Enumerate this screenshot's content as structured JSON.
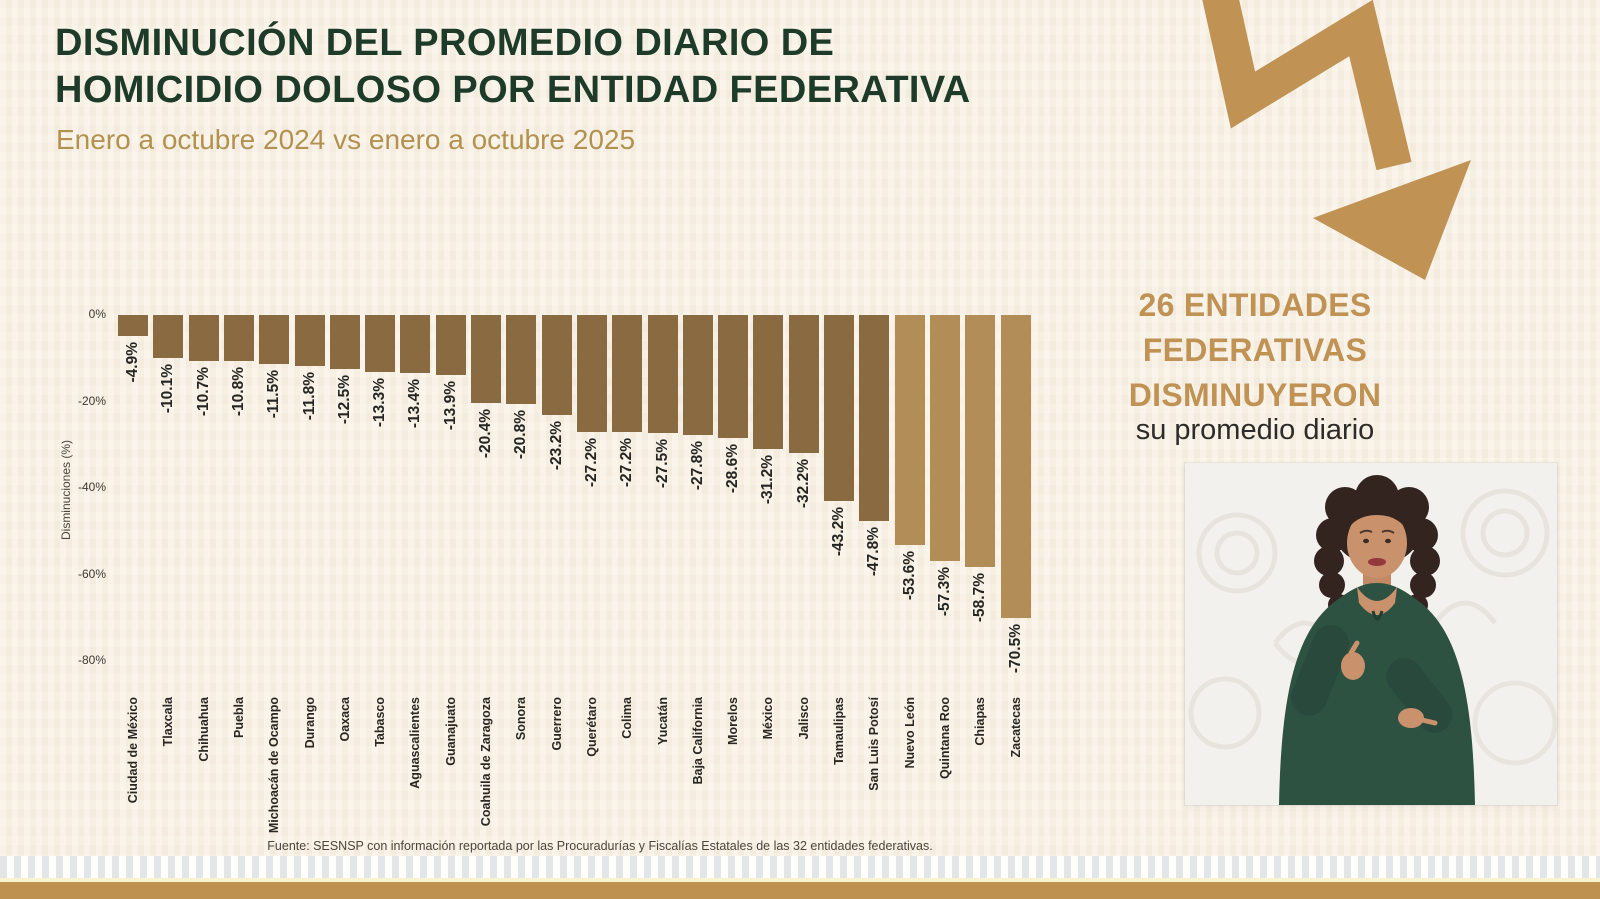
{
  "header": {
    "title_line1": "DISMINUCIÓN DEL PROMEDIO DIARIO DE",
    "title_line2": "HOMICIDIO DOLOSO POR ENTIDAD FEDERATIVA",
    "subtitle": "Enero a octubre 2024 vs enero a octubre 2025"
  },
  "chart_data": {
    "type": "bar",
    "title": "Disminución del promedio diario de homicidio doloso por entidad federativa",
    "subtitle": "Enero a octubre 2024 vs enero a octubre 2025",
    "xlabel": "",
    "ylabel": "Disminuciones (%)",
    "ylim": [
      -80,
      0
    ],
    "yticks": [
      "0%",
      "-20%",
      "-40%",
      "-60%",
      "-80%"
    ],
    "grid": false,
    "legend": "none",
    "categories": [
      "Ciudad de México",
      "Tlaxcala",
      "Chihuahua",
      "Puebla",
      "Michoacán de Ocampo",
      "Durango",
      "Oaxaca",
      "Tabasco",
      "Aguascalientes",
      "Guanajuato",
      "Coahuila de Zaragoza",
      "Sonora",
      "Guerrero",
      "Querétaro",
      "Colima",
      "Yucatán",
      "Baja California",
      "Morelos",
      "México",
      "Jalisco",
      "Tamaulipas",
      "San Luis Potosí",
      "Nuevo León",
      "Quintana Roo",
      "Chiapas",
      "Zacatecas"
    ],
    "values": [
      -4.9,
      -10.1,
      -10.7,
      -10.8,
      -11.5,
      -11.8,
      -12.5,
      -13.3,
      -13.4,
      -13.9,
      -20.4,
      -20.8,
      -23.2,
      -27.2,
      -27.2,
      -27.5,
      -27.8,
      -28.6,
      -31.2,
      -32.2,
      -43.2,
      -47.8,
      -53.6,
      -57.3,
      -58.7,
      -70.5
    ],
    "bar_labels": [
      "-4.9%",
      "-10.1%",
      "-10.7%",
      "-10.8%",
      "-11.5%",
      "-11.8%",
      "-12.5%",
      "-13.3%",
      "-13.4%",
      "-13.9%",
      "-20.4%",
      "-20.8%",
      "-23.2%",
      "-27.2%",
      "-27.2%",
      "-27.5%",
      "-27.8%",
      "-28.6%",
      "-31.2%",
      "-32.2%",
      "-43.2%",
      "-47.8%",
      "-53.6%",
      "-57.3%",
      "-58.7%",
      "-70.5%"
    ],
    "light_bar_start_index": 22
  },
  "side_panel": {
    "headline_line1": "26 ENTIDADES",
    "headline_line2": "FEDERATIVAS",
    "headline_line3": "DISMINUYERON",
    "subheadline": "su promedio diario",
    "arrow_icon": "declining-zigzag-arrow"
  },
  "footer": {
    "source": "Fuente: SESNSP con información reportada por las Procuradurías y Fiscalías Estatales de las 32 entidades federativas."
  },
  "colors": {
    "background": "#f8f1e4",
    "title_green": "#1d3b28",
    "accent_gold": "#c09254",
    "subtitle_gold": "#b3914f",
    "bar_dark": "#8a6a41",
    "bar_light": "#b38d58",
    "label_dark": "#252521",
    "bottom_bar_gold": "#bf9150"
  }
}
